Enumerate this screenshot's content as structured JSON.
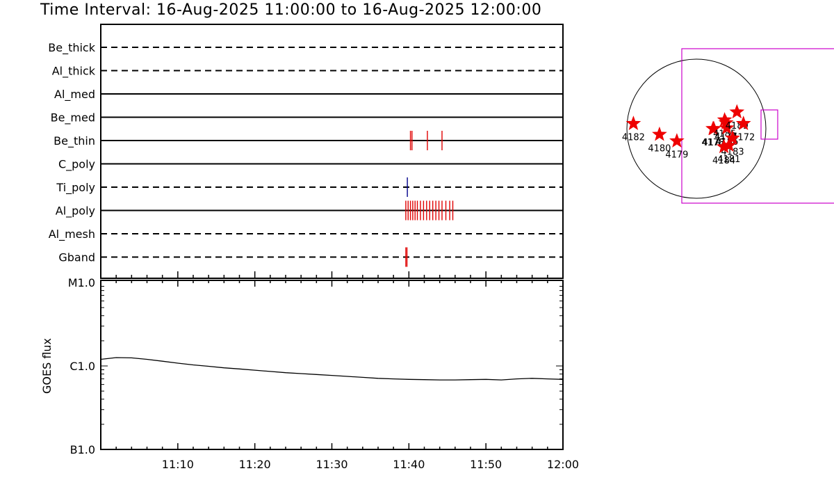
{
  "title": "Time Interval: 16-Aug-2025 11:00:00 to 16-Aug-2025 12:00:00",
  "colors": {
    "line": "#000000",
    "detection": "#e00000",
    "ti_detection": "#00008b",
    "fov_box": "#cc00cc",
    "star": "#ee0000"
  },
  "chart_data": [
    {
      "type": "line",
      "name": "filter_timeline",
      "time_range_minutes": [
        0,
        60
      ],
      "channels": [
        {
          "label": "Be_thick",
          "style": "dashed",
          "events": []
        },
        {
          "label": "Al_thick",
          "style": "dashed",
          "events": []
        },
        {
          "label": "Al_med",
          "style": "solid",
          "events": []
        },
        {
          "label": "Be_med",
          "style": "solid",
          "events": []
        },
        {
          "label": "Be_thin",
          "style": "solid",
          "events": [
            40.2,
            40.4,
            42.4,
            44.3
          ]
        },
        {
          "label": "C_poly",
          "style": "solid",
          "events": []
        },
        {
          "label": "Ti_poly",
          "style": "dashed",
          "events": [
            39.8
          ],
          "event_color": "#00008b"
        },
        {
          "label": "Al_poly",
          "style": "solid",
          "events": [
            39.6,
            39.9,
            40.2,
            40.5,
            40.8,
            41.1,
            41.5,
            41.9,
            42.3,
            42.7,
            43.1,
            43.5,
            43.9,
            44.3,
            44.8,
            45.3,
            45.7
          ]
        },
        {
          "label": "Al_mesh",
          "style": "dashed",
          "events": []
        },
        {
          "label": "Gband",
          "style": "dashed",
          "events": [
            39.6,
            39.75
          ]
        }
      ]
    },
    {
      "type": "line",
      "name": "goes_flux",
      "ylabel": "GOES flux",
      "yscale": "log",
      "ylim": [
        1e-07,
        1e-05
      ],
      "ytick_labels": [
        {
          "value": 1e-05,
          "label": "M1.0"
        },
        {
          "value": 1e-06,
          "label": "C1.0"
        },
        {
          "value": 1e-07,
          "label": "B1.0"
        }
      ],
      "x_minutes": [
        0,
        2,
        4,
        6,
        8,
        10,
        12,
        14,
        16,
        18,
        20,
        22,
        24,
        26,
        28,
        30,
        32,
        34,
        36,
        38,
        40,
        42,
        44,
        46,
        48,
        50,
        52,
        54,
        56,
        58,
        60
      ],
      "y": [
        1.2e-06,
        1.26e-06,
        1.25e-06,
        1.2e-06,
        1.14e-06,
        1.08e-06,
        1.03e-06,
        9.9e-07,
        9.5e-07,
        9.2e-07,
        8.9e-07,
        8.6e-07,
        8.3e-07,
        8.1e-07,
        7.9e-07,
        7.7e-07,
        7.5e-07,
        7.3e-07,
        7.1e-07,
        7e-07,
        6.9e-07,
        6.85e-07,
        6.8e-07,
        6.8e-07,
        6.85e-07,
        6.9e-07,
        6.8e-07,
        7e-07,
        7.1e-07,
        7e-07,
        6.9e-07
      ],
      "xtick_labels": [
        {
          "minute": 10,
          "label": "11:10"
        },
        {
          "minute": 20,
          "label": "11:20"
        },
        {
          "minute": 30,
          "label": "11:30"
        },
        {
          "minute": 40,
          "label": "11:40"
        },
        {
          "minute": 50,
          "label": "11:50"
        },
        {
          "minute": 60,
          "label": "12:00"
        }
      ]
    },
    {
      "type": "scatter",
      "name": "solar_disk_active_regions",
      "x_range_arcsec": [
        -1050,
        1050
      ],
      "y_range_arcsec": [
        -1050,
        1050
      ],
      "regions": [
        {
          "label": "4182",
          "x": -870,
          "y": 70
        },
        {
          "label": "4180",
          "x": -510,
          "y": -80
        },
        {
          "label": "4179",
          "x": -270,
          "y": -170
        },
        {
          "label": "4178",
          "x": 230,
          "y": 0
        },
        {
          "label": "4177",
          "x": 240,
          "y": 0
        },
        {
          "label": "4176",
          "x": 410,
          "y": 80
        },
        {
          "label": "4185",
          "x": 390,
          "y": 120
        },
        {
          "label": "4186",
          "x": 420,
          "y": 10
        },
        {
          "label": "4189",
          "x": 560,
          "y": 230
        },
        {
          "label": "4172",
          "x": 650,
          "y": 70
        },
        {
          "label": "4183",
          "x": 500,
          "y": -130
        },
        {
          "label": "4181",
          "x": 450,
          "y": -230
        },
        {
          "label": "4184",
          "x": 380,
          "y": -250
        }
      ]
    }
  ]
}
